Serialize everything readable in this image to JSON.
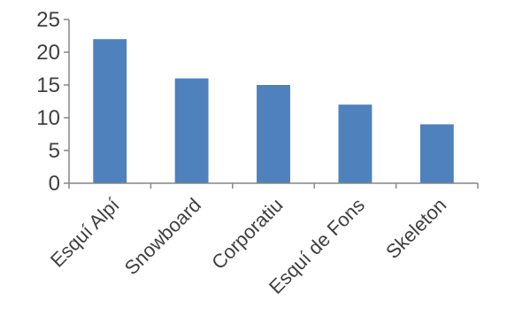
{
  "chart_data": {
    "type": "bar",
    "categories": [
      "Esquí Alpí",
      "Snowboard",
      "Corporatiu",
      "Esquí de Fons",
      "Skeleton"
    ],
    "values": [
      22,
      16,
      15,
      12,
      9
    ],
    "yticks": [
      0,
      5,
      10,
      15,
      20,
      25
    ],
    "ylim": [
      0,
      25
    ],
    "title": "",
    "xlabel": "",
    "ylabel": "",
    "grid": false,
    "legend": "none",
    "colors": {
      "bar": "#4f81bd",
      "axis": "#868686",
      "text": "#404040"
    }
  }
}
